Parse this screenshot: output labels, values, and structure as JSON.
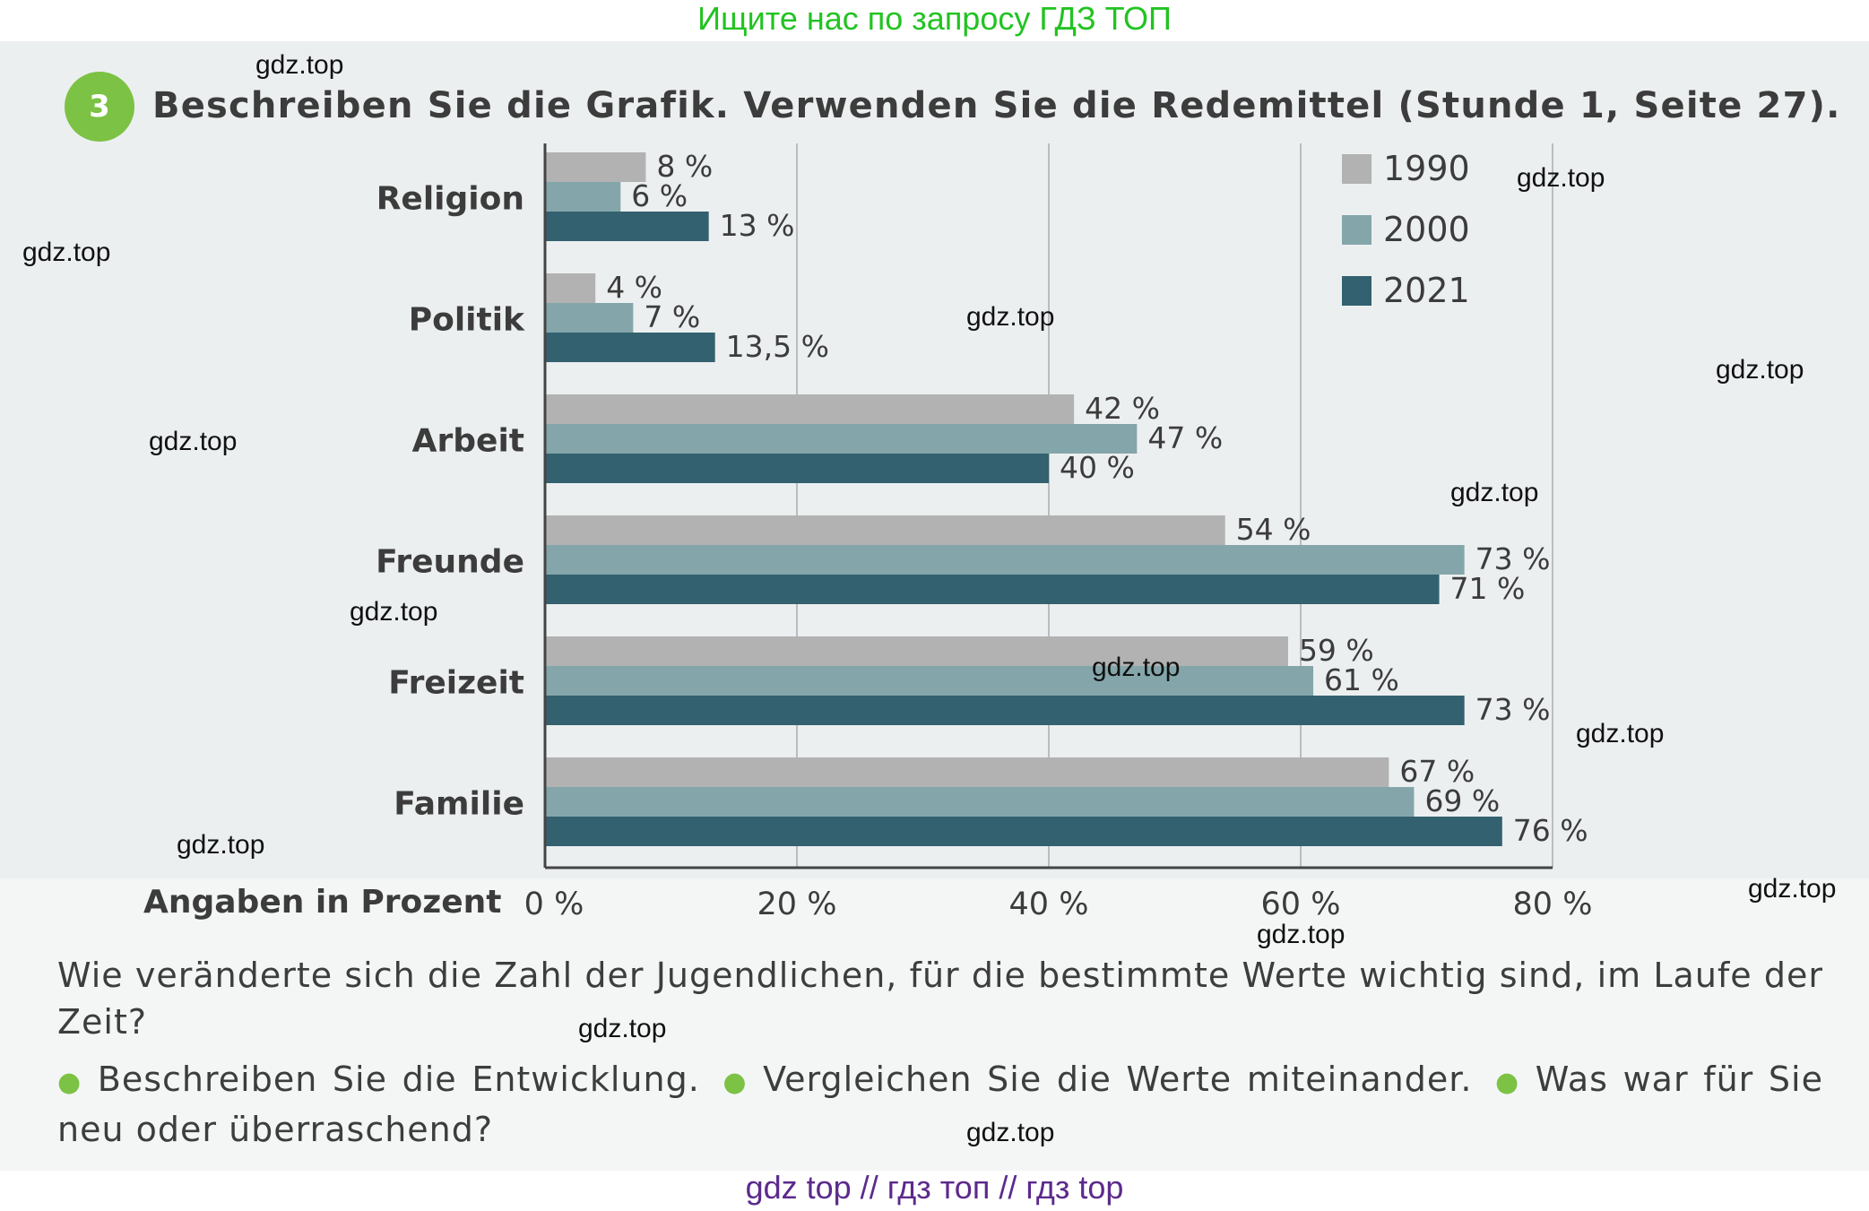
{
  "banner": "Ищите нас по запросу ГДЗ ТОП",
  "task": {
    "number": "3",
    "title": "Beschreiben Sie die Grafik. Verwenden Sie die Redemittel (Stunde 1, Seite 27)."
  },
  "chart_data": {
    "type": "bar",
    "orientation": "horizontal",
    "title": "",
    "xlabel": "Angaben in Prozent",
    "ylabel": "",
    "xlim": [
      0,
      80
    ],
    "xticks": [
      0,
      20,
      40,
      60,
      80
    ],
    "xtick_labels": [
      "0 %",
      "20 %",
      "40 %",
      "60 %",
      "80 %"
    ],
    "grid": true,
    "legend_position": "top-right",
    "categories": [
      "Religion",
      "Politik",
      "Arbeit",
      "Freunde",
      "Freizeit",
      "Familie"
    ],
    "series": [
      {
        "name": "1990",
        "color": "#b1b2b1",
        "values": [
          8,
          4,
          42,
          54,
          59,
          67
        ],
        "labels": [
          "8 %",
          "4 %",
          "42 %",
          "54 %",
          "59 %",
          "67 %"
        ]
      },
      {
        "name": "2000",
        "color": "#84a6ab",
        "values": [
          6,
          7,
          47,
          73,
          61,
          69
        ],
        "labels": [
          "6 %",
          "7 %",
          "47 %",
          "73 %",
          "61 %",
          "69 %"
        ]
      },
      {
        "name": "2021",
        "color": "#33616f",
        "values": [
          13,
          13.5,
          40,
          71,
          73,
          76
        ],
        "labels": [
          "13 %",
          "13,5 %",
          "40 %",
          "71 %",
          "73 %",
          "76 %"
        ]
      }
    ]
  },
  "question": "Wie veränderte sich die Zahl der Jugendlichen, für die bestimmte Werte wichtig sind, im Laufe der Zeit?",
  "tasks": [
    "Beschreiben Sie die Entwicklung.",
    "Vergleichen Sie die Werte miteinander.",
    "Was war für Sie neu oder überraschend?"
  ],
  "watermark": "gdz.top",
  "footer": "gdz top  //  гдз топ  //  гдз top"
}
